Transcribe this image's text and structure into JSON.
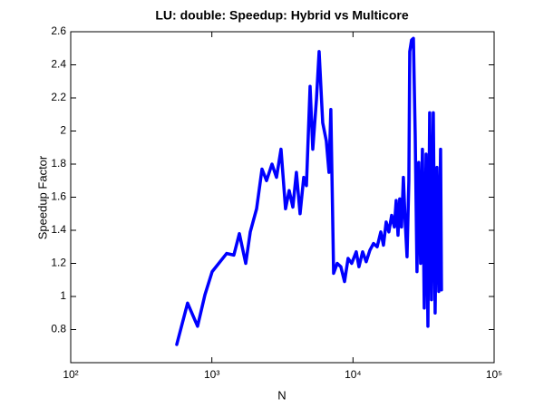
{
  "chart_data": {
    "type": "line",
    "title": "LU: double:  Speedup: Hybrid vs Multicore",
    "x_label": "N",
    "y_label": "Speedup Factor",
    "x_scale": "log",
    "grid": false,
    "color": "#0000ff",
    "xlim": [
      100,
      100000
    ],
    "xticks": [
      {
        "value": 100,
        "label": "10²"
      },
      {
        "value": 1000,
        "label": "10³"
      },
      {
        "value": 10000,
        "label": "10⁴"
      },
      {
        "value": 100000,
        "label": "10⁵"
      }
    ],
    "ylim": [
      0.6,
      2.6
    ],
    "yticks": [
      0.8,
      1,
      1.2,
      1.4,
      1.6,
      1.8,
      2,
      2.2,
      2.4,
      2.6
    ],
    "x": [
      564,
      673,
      792,
      893,
      1005,
      1273,
      1432,
      1566,
      1738,
      1871,
      2075,
      2266,
      2440,
      2667,
      2871,
      3090,
      3327,
      3532,
      3749,
      3972,
      4217,
      4477,
      4678,
      4966,
      5188,
      5508,
      5754,
      6100,
      6471,
      6761,
      6966,
      7290,
      7730,
      8200,
      8710,
      9230,
      9790,
      10540,
      11020,
      11700,
      12400,
      13180,
      13970,
      14830,
      15740,
      16440,
      17180,
      17950,
      18790,
      19630,
      20230,
      20840,
      21440,
      22080,
      22750,
      23440,
      24150,
      24880,
      25240,
      26000,
      26790,
      27600,
      28400,
      29240,
      30130,
      31040,
      31980,
      32950,
      33950,
      34940,
      35990,
      37070,
      38190,
      39340,
      40530,
      41750,
      42360
    ],
    "values": [
      0.71,
      0.96,
      0.82,
      1.01,
      1.15,
      1.26,
      1.25,
      1.38,
      1.2,
      1.39,
      1.53,
      1.77,
      1.7,
      1.8,
      1.72,
      1.89,
      1.53,
      1.64,
      1.54,
      1.75,
      1.5,
      1.72,
      1.67,
      2.27,
      1.89,
      2.19,
      2.48,
      2.05,
      1.94,
      1.75,
      2.13,
      1.14,
      1.2,
      1.18,
      1.09,
      1.23,
      1.2,
      1.27,
      1.18,
      1.27,
      1.21,
      1.28,
      1.32,
      1.3,
      1.39,
      1.31,
      1.45,
      1.39,
      1.49,
      1.42,
      1.58,
      1.37,
      1.59,
      1.42,
      1.72,
      1.45,
      1.24,
      1.7,
      2.48,
      2.55,
      2.56,
      1.97,
      1.15,
      1.81,
      1.2,
      1.89,
      0.93,
      1.86,
      0.82,
      2.11,
      0.98,
      2.11,
      0.9,
      1.78,
      1.03,
      1.89,
      1.04
    ]
  }
}
